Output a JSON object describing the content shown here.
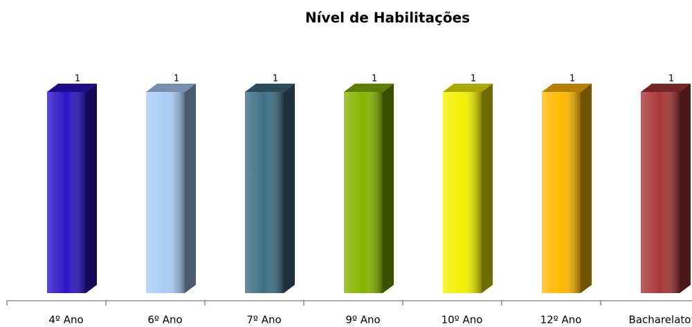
{
  "chart_data": {
    "type": "bar3d",
    "title": "Nível de Habilitações",
    "categories": [
      "4º Ano",
      "6º Ano",
      "7º Ano",
      "9º Ano",
      "10º Ano",
      "12º Ano",
      "Bacharelato"
    ],
    "values": [
      1,
      1,
      1,
      1,
      1,
      1,
      1
    ],
    "colors": [
      "#2a14c4",
      "#a9cdf6",
      "#3f6e84",
      "#86b400",
      "#f2f000",
      "#ffb900",
      "#a63636"
    ]
  }
}
